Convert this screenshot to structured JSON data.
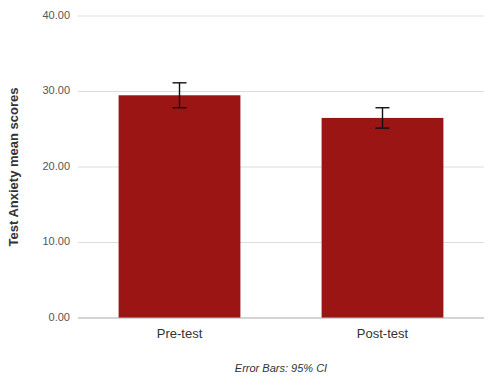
{
  "chart_data": {
    "type": "bar",
    "categories": [
      "Pre-test",
      "Post-test"
    ],
    "values": [
      29.5,
      26.5
    ],
    "errors": [
      1.65,
      1.35
    ],
    "color": "#9B1515",
    "ylabel": "Test Anxiety mean scores",
    "caption": "Error Bars: 95% CI",
    "ylim": [
      0,
      40
    ],
    "yticks": [
      {
        "value": 0,
        "label": "0.00"
      },
      {
        "value": 10,
        "label": "10.00"
      },
      {
        "value": 20,
        "label": "20.00"
      },
      {
        "value": 30,
        "label": "30.00"
      },
      {
        "value": 40,
        "label": "40.00"
      }
    ],
    "grid": true
  }
}
